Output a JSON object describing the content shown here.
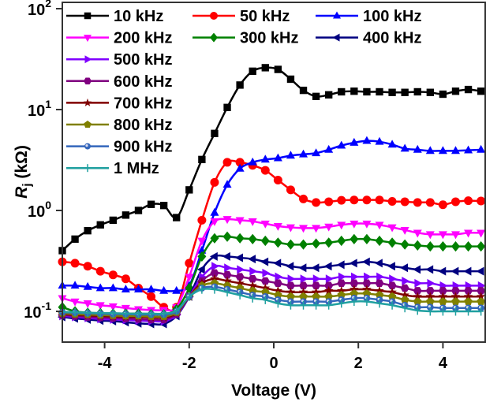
{
  "chart_data": {
    "type": "line",
    "title": "",
    "xlabel": "Voltage (V)",
    "ylabel_main": "R",
    "ylabel_sub": "j",
    "ylabel_unit": " (kΩ)",
    "xlim": [
      -5,
      5
    ],
    "ylim": [
      0.05,
      100
    ],
    "yscale": "log",
    "grid": false,
    "legend_position": "top-left",
    "xticks": [
      {
        "value": -4,
        "label": "-4"
      },
      {
        "value": -2,
        "label": "-2"
      },
      {
        "value": 0,
        "label": "0"
      },
      {
        "value": 2,
        "label": "2"
      },
      {
        "value": 4,
        "label": "4"
      }
    ],
    "yticks": [
      {
        "value": 100,
        "base": "10",
        "exp": "2"
      },
      {
        "value": 10,
        "base": "10",
        "exp": "1"
      },
      {
        "value": 1,
        "base": "10",
        "exp": "0"
      },
      {
        "value": 0.1,
        "base": "10",
        "exp": "-1"
      }
    ],
    "x": [
      -5.0,
      -4.7,
      -4.4,
      -4.1,
      -3.8,
      -3.5,
      -3.2,
      -2.9,
      -2.6,
      -2.3,
      -2.0,
      -1.7,
      -1.4,
      -1.1,
      -0.8,
      -0.5,
      -0.2,
      0.1,
      0.4,
      0.7,
      1.0,
      1.3,
      1.6,
      1.9,
      2.2,
      2.5,
      2.8,
      3.1,
      3.4,
      3.7,
      4.0,
      4.3,
      4.6,
      4.9
    ],
    "series": [
      {
        "name": "10 kHz",
        "color": "#000000",
        "marker": "square",
        "values": [
          0.4,
          0.52,
          0.63,
          0.72,
          0.8,
          0.9,
          1.0,
          1.15,
          1.12,
          0.85,
          1.6,
          3.2,
          5.8,
          10.5,
          17.5,
          24,
          26,
          25,
          20,
          15.5,
          13.5,
          14,
          15,
          15.2,
          15,
          15,
          14.8,
          14.8,
          15,
          14.8,
          14.2,
          15.2,
          15.8,
          15.2
        ]
      },
      {
        "name": "50 kHz",
        "color": "#ff0000",
        "marker": "circle",
        "values": [
          0.31,
          0.3,
          0.28,
          0.25,
          0.23,
          0.21,
          0.17,
          0.14,
          0.11,
          0.11,
          0.3,
          0.8,
          1.9,
          3.0,
          3.0,
          2.8,
          2.5,
          2.0,
          1.6,
          1.3,
          1.2,
          1.22,
          1.26,
          1.27,
          1.27,
          1.27,
          1.23,
          1.22,
          1.2,
          1.2,
          1.14,
          1.22,
          1.25,
          1.24
        ]
      },
      {
        "name": "100 kHz",
        "color": "#0000ff",
        "marker": "triangle-up",
        "values": [
          0.18,
          0.18,
          0.175,
          0.17,
          0.17,
          0.165,
          0.165,
          0.165,
          0.16,
          0.16,
          0.18,
          0.4,
          0.95,
          1.8,
          2.6,
          3.0,
          3.2,
          3.3,
          3.5,
          3.6,
          3.7,
          4.0,
          4.4,
          4.7,
          4.9,
          4.8,
          4.5,
          4.1,
          4.0,
          3.9,
          3.9,
          3.9,
          3.95,
          4.0
        ]
      },
      {
        "name": "200 kHz",
        "color": "#ff00ff",
        "marker": "triangle-down",
        "values": [
          0.135,
          0.125,
          0.12,
          0.115,
          0.112,
          0.108,
          0.105,
          0.103,
          0.103,
          0.11,
          0.22,
          0.5,
          0.78,
          0.82,
          0.8,
          0.78,
          0.74,
          0.7,
          0.68,
          0.67,
          0.67,
          0.69,
          0.72,
          0.74,
          0.74,
          0.72,
          0.68,
          0.64,
          0.6,
          0.58,
          0.58,
          0.58,
          0.6,
          0.6
        ]
      },
      {
        "name": "300 kHz",
        "color": "#008000",
        "marker": "diamond",
        "values": [
          0.11,
          0.1,
          0.097,
          0.096,
          0.095,
          0.095,
          0.095,
          0.094,
          0.094,
          0.105,
          0.17,
          0.35,
          0.53,
          0.55,
          0.53,
          0.52,
          0.5,
          0.48,
          0.46,
          0.46,
          0.47,
          0.48,
          0.5,
          0.52,
          0.52,
          0.5,
          0.48,
          0.46,
          0.45,
          0.44,
          0.44,
          0.44,
          0.44,
          0.44
        ]
      },
      {
        "name": "400 kHz",
        "color": "#000080",
        "marker": "triangle-left",
        "values": [
          0.088,
          0.085,
          0.083,
          0.081,
          0.08,
          0.078,
          0.076,
          0.075,
          0.075,
          0.09,
          0.14,
          0.26,
          0.35,
          0.35,
          0.34,
          0.33,
          0.31,
          0.3,
          0.28,
          0.27,
          0.27,
          0.28,
          0.29,
          0.3,
          0.31,
          0.3,
          0.28,
          0.27,
          0.26,
          0.26,
          0.25,
          0.25,
          0.25,
          0.25
        ]
      },
      {
        "name": "500 kHz",
        "color": "#8000ff",
        "marker": "triangle-right",
        "values": [
          0.09,
          0.088,
          0.086,
          0.084,
          0.083,
          0.082,
          0.081,
          0.08,
          0.08,
          0.092,
          0.14,
          0.22,
          0.28,
          0.27,
          0.26,
          0.25,
          0.24,
          0.22,
          0.21,
          0.21,
          0.21,
          0.21,
          0.22,
          0.22,
          0.22,
          0.22,
          0.21,
          0.2,
          0.19,
          0.19,
          0.18,
          0.18,
          0.18,
          0.18
        ]
      },
      {
        "name": "600 kHz",
        "color": "#800080",
        "marker": "hexagon",
        "values": [
          0.092,
          0.09,
          0.088,
          0.087,
          0.086,
          0.085,
          0.084,
          0.083,
          0.083,
          0.094,
          0.14,
          0.2,
          0.24,
          0.23,
          0.22,
          0.21,
          0.2,
          0.19,
          0.18,
          0.18,
          0.18,
          0.18,
          0.19,
          0.19,
          0.19,
          0.19,
          0.18,
          0.17,
          0.16,
          0.16,
          0.16,
          0.16,
          0.16,
          0.16
        ]
      },
      {
        "name": "700 kHz",
        "color": "#800000",
        "marker": "star",
        "values": [
          0.094,
          0.092,
          0.091,
          0.09,
          0.089,
          0.088,
          0.088,
          0.087,
          0.087,
          0.096,
          0.14,
          0.19,
          0.21,
          0.2,
          0.19,
          0.18,
          0.17,
          0.16,
          0.155,
          0.155,
          0.155,
          0.16,
          0.16,
          0.165,
          0.165,
          0.16,
          0.155,
          0.145,
          0.14,
          0.14,
          0.14,
          0.14,
          0.14,
          0.14
        ]
      },
      {
        "name": "800 kHz",
        "color": "#808000",
        "marker": "pentagon",
        "values": [
          0.096,
          0.094,
          0.093,
          0.092,
          0.091,
          0.09,
          0.09,
          0.089,
          0.089,
          0.098,
          0.14,
          0.18,
          0.19,
          0.18,
          0.17,
          0.16,
          0.155,
          0.145,
          0.14,
          0.14,
          0.14,
          0.14,
          0.145,
          0.15,
          0.15,
          0.145,
          0.14,
          0.13,
          0.125,
          0.125,
          0.125,
          0.125,
          0.125,
          0.125
        ]
      },
      {
        "name": "900 kHz",
        "color": "#3366bb",
        "marker": "circle-small",
        "values": [
          0.098,
          0.097,
          0.096,
          0.095,
          0.094,
          0.094,
          0.093,
          0.093,
          0.093,
          0.1,
          0.14,
          0.17,
          0.175,
          0.165,
          0.155,
          0.145,
          0.14,
          0.13,
          0.125,
          0.125,
          0.125,
          0.125,
          0.13,
          0.135,
          0.135,
          0.13,
          0.125,
          0.115,
          0.11,
          0.11,
          0.108,
          0.108,
          0.108,
          0.108
        ]
      },
      {
        "name": "1 MHz",
        "color": "#20a0a0",
        "marker": "plus",
        "values": [
          0.099,
          0.098,
          0.097,
          0.096,
          0.096,
          0.095,
          0.095,
          0.095,
          0.095,
          0.102,
          0.14,
          0.165,
          0.165,
          0.155,
          0.145,
          0.135,
          0.13,
          0.12,
          0.115,
          0.115,
          0.115,
          0.115,
          0.12,
          0.125,
          0.125,
          0.12,
          0.115,
          0.108,
          0.102,
          0.1,
          0.1,
          0.1,
          0.1,
          0.1
        ]
      }
    ]
  }
}
